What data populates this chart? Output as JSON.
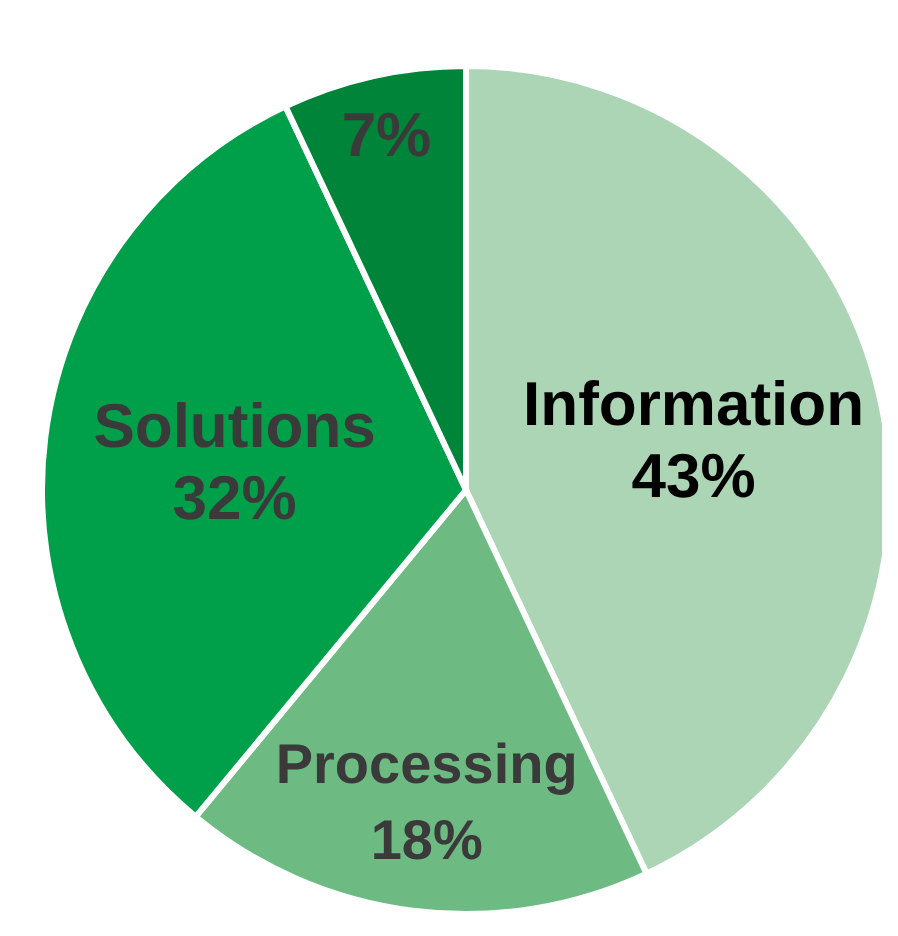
{
  "chart_data": {
    "type": "pie",
    "categories": [
      "Information",
      "Processing",
      "Solutions",
      null
    ],
    "values": [
      43,
      18,
      32,
      7
    ],
    "colors": [
      "#acd5b5",
      "#6dbb82",
      "#00a04a",
      "#008439"
    ],
    "value_labels": [
      "43%",
      "18%",
      "32%",
      "7%"
    ]
  }
}
